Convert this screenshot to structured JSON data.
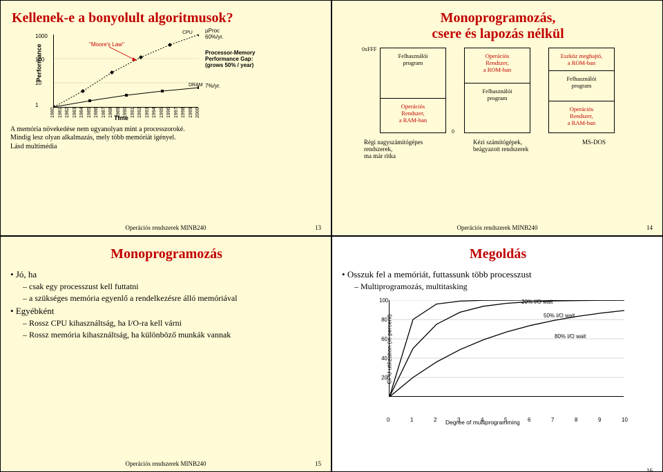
{
  "slide1": {
    "title": "Kellenek-e a bonyolult algoritmusok?",
    "title_color": "#cc0000",
    "chart": {
      "type": "line",
      "ylabel": "Performance",
      "yscale": "log",
      "yticks": [
        1,
        10,
        100,
        1000
      ],
      "xticks": [
        1980,
        1981,
        1982,
        1983,
        1984,
        1985,
        1986,
        1987,
        1988,
        1989,
        1990,
        1991,
        1992,
        1993,
        1994,
        1995,
        1996,
        1997,
        1998,
        1999,
        2000
      ],
      "xlabel": "Time",
      "series": [
        {
          "name": "µProc",
          "points": [
            [
              1980,
              1
            ],
            [
              1984,
              3
            ],
            [
              1988,
              12
            ],
            [
              1992,
              45
            ],
            [
              1996,
              200
            ],
            [
              2000,
              1000
            ]
          ],
          "color": "#000000",
          "dashed": true,
          "marker": "diamond"
        },
        {
          "name": "DRAM",
          "points": [
            [
              1980,
              1
            ],
            [
              1985,
              1.5
            ],
            [
              1990,
              2.2
            ],
            [
              1995,
              3.0
            ],
            [
              2000,
              4.0
            ]
          ],
          "color": "#000000",
          "marker": "square"
        }
      ],
      "annotations": {
        "moore": "\"Moore's Law\"",
        "moore_color": "#cc0000",
        "cpu": "CPU",
        "uproc": "µProc\n60%/yr.",
        "gap_title": "Processor-Memory\nPerformance Gap:\n(grows 50% / year)",
        "dram": "DRAM",
        "dram_rate": "7%/yr."
      },
      "font_family": "Arial",
      "label_fontsize": 8,
      "axis_color": "#000000"
    },
    "notes": [
      "A memória növekedése nem ugyanolyan mint a processzoroké.",
      "Mindig lesz olyan alkalmazás, mely több memóriát igényel.",
      "Lásd multimédia"
    ],
    "footer": "Operációs rendszerek MINB240",
    "page": "13"
  },
  "slide2": {
    "title_l1": "Monoprogramozás,",
    "title_l2": "csere és lapozás nélkül",
    "title_color": "#cc0000",
    "addr_top": "0xFFF",
    "addr_bot": "0",
    "col1": {
      "segs": [
        "Felhasználói\nprogram",
        "Operációs\nRendszer,\na RAM-ban"
      ],
      "colors": [
        "#000000",
        "#cc0000"
      ]
    },
    "col2": {
      "segs": [
        "Operációs\nRendszer,\na ROM-ban",
        "Felhasználói\nprogram"
      ],
      "colors": [
        "#cc0000",
        "#000000"
      ]
    },
    "col3": {
      "segs": [
        "Eszköz meghajtó,\na ROM-ban",
        "Felhasználói\nprogram",
        "Operációs\nRendszer,\na RAM-ban"
      ],
      "colors": [
        "#cc0000",
        "#000000",
        "#cc0000"
      ]
    },
    "caps": [
      "Régi nagyszámítógépes\nrendszerek,\nma már ritka",
      "Kézi számítógépek,\nbeágyazott rendszerek",
      "MS-DOS"
    ],
    "footer": "Operációs rendszerek MINB240",
    "page": "14"
  },
  "slide3": {
    "title": "Monoprogramozás",
    "title_color": "#cc0000",
    "bullets": [
      {
        "t": "Jó, ha",
        "sub": [
          "csak egy processzust kell futtatni",
          "a szükséges memória egyenlő a rendelkezésre álló memóriával"
        ]
      },
      {
        "t": "Egyébként",
        "sub": [
          "Rossz CPU kihasználtság, ha I/O-ra kell várni",
          "Rossz memória kihasználtság, ha különböző munkák vannak"
        ]
      }
    ],
    "footer": "Operációs rendszerek MINB240",
    "page": "15"
  },
  "slide4": {
    "title": "Megoldás",
    "title_color": "#cc0000",
    "bullets": [
      {
        "t": "Osszuk fel a memóriát, futtassunk több processzust",
        "sub": [
          "Multiprogramozás, multitasking"
        ]
      }
    ],
    "chart": {
      "type": "line",
      "ylabel": "CPU utilization (in percent)",
      "xlabel": "Degree of multiprogramming",
      "ylim": [
        0,
        100
      ],
      "ytick_step": 20,
      "xlim": [
        0,
        10
      ],
      "xtick_step": 1,
      "series": [
        {
          "name": "20% I/O wait",
          "points": [
            [
              0,
              0
            ],
            [
              1,
              80
            ],
            [
              2,
              96
            ],
            [
              3,
              99
            ],
            [
              4,
              99.8
            ],
            [
              5,
              99.9
            ],
            [
              6,
              100
            ],
            [
              7,
              100
            ],
            [
              8,
              100
            ],
            [
              9,
              100
            ],
            [
              10,
              100
            ]
          ],
          "color": "#000000"
        },
        {
          "name": "50% I/O wait",
          "points": [
            [
              0,
              0
            ],
            [
              1,
              50
            ],
            [
              2,
              75
            ],
            [
              3,
              87.5
            ],
            [
              4,
              93.7
            ],
            [
              5,
              96.8
            ],
            [
              6,
              98.4
            ],
            [
              7,
              99.2
            ],
            [
              8,
              99.6
            ],
            [
              9,
              99.8
            ],
            [
              10,
              99.9
            ]
          ],
          "color": "#000000"
        },
        {
          "name": "80% I/O wait",
          "points": [
            [
              0,
              0
            ],
            [
              1,
              20
            ],
            [
              2,
              36
            ],
            [
              3,
              48.8
            ],
            [
              4,
              59
            ],
            [
              5,
              67.2
            ],
            [
              6,
              73.8
            ],
            [
              7,
              79
            ],
            [
              8,
              83.2
            ],
            [
              9,
              86.6
            ],
            [
              10,
              89.3
            ]
          ],
          "color": "#000000"
        }
      ],
      "annotations": {
        "a20": "20% I/O wait",
        "a50": "50% I/O wait",
        "a80": "80% I/O wait"
      },
      "grid_color": "#aaaaaa",
      "axis_color": "#000000"
    },
    "page": "16"
  }
}
